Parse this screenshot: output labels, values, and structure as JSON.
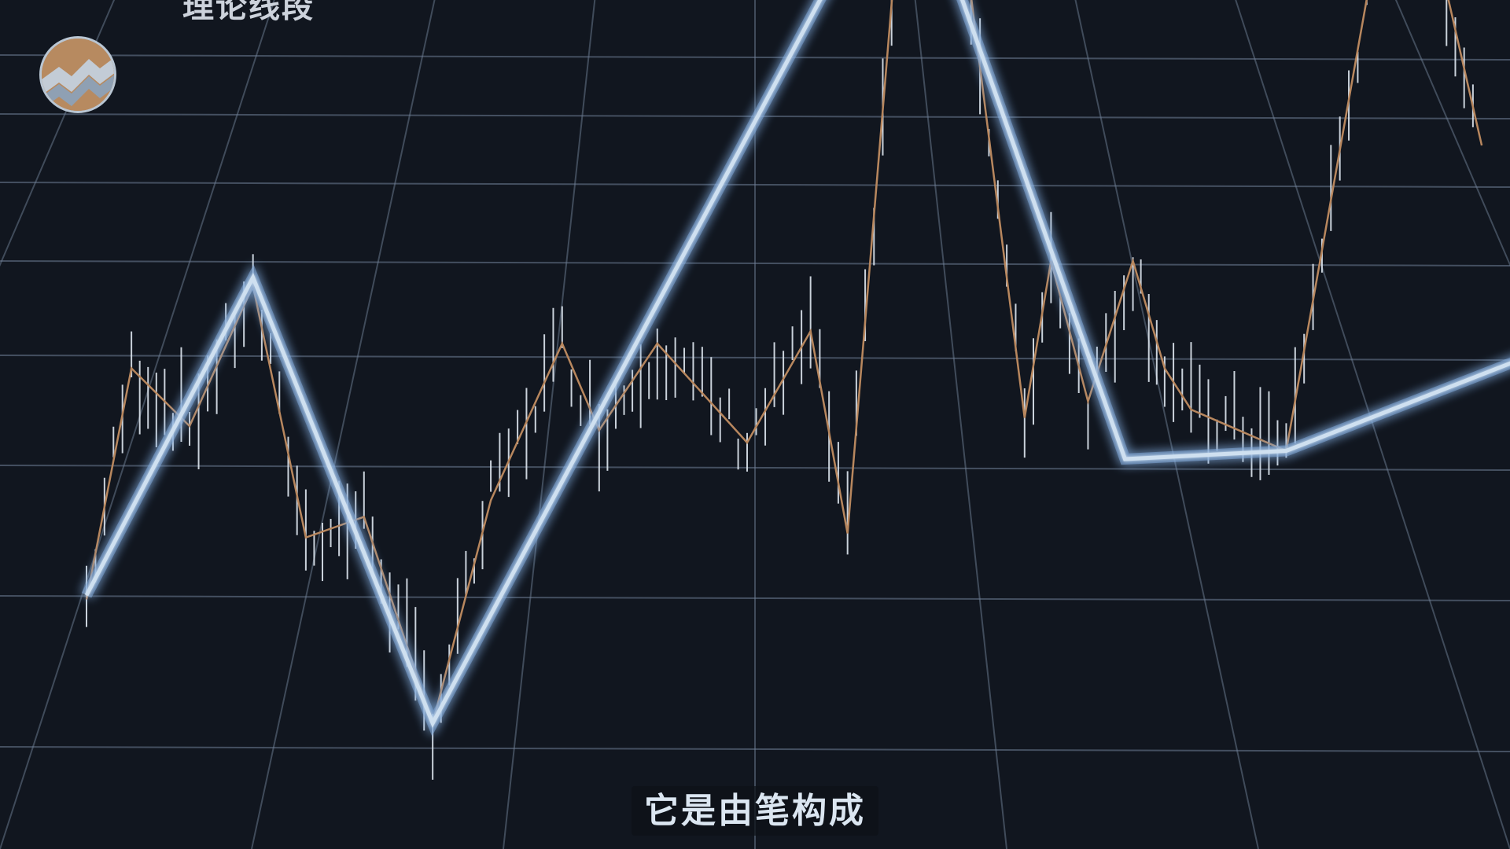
{
  "header": {
    "title": "理论线段"
  },
  "logo": {
    "icon": "zigzag-logo-icon"
  },
  "subtitle": "它是由笔构成",
  "colors": {
    "background": "#11161f",
    "grid": "#6f7f95",
    "segment": "#cfe0f0",
    "segment_glow": "#7fa8d8",
    "stroke": "#b8875e",
    "candle": "#dfe7ef"
  },
  "chart_data": {
    "type": "line",
    "title": "理论线段",
    "xlabel": "",
    "ylabel": "",
    "grid": true,
    "series": [
      {
        "role": "segment",
        "x": [
          0,
          6.3,
          13.1,
          31.0,
          39.3,
          45.4,
          55.0
        ],
        "y": [
          0.255,
          0.64,
          0.1,
          1.17,
          0.42,
          0.43,
          0.55
        ]
      },
      {
        "role": "stroke",
        "x": [
          0,
          1.7,
          3.9,
          6.3,
          8.3,
          10.5,
          13.1,
          15.3,
          18.0,
          19.4,
          21.6,
          25.0,
          27.4,
          28.8,
          30.8,
          32.8,
          35.5,
          36.5,
          37.9,
          39.6,
          40.8,
          41.8,
          45.4,
          49.8,
          52.8
        ],
        "y": [
          0.25,
          0.53,
          0.46,
          0.63,
          0.325,
          0.35,
          0.1,
          0.37,
          0.56,
          0.455,
          0.56,
          0.44,
          0.575,
          0.33,
          1.1,
          1.15,
          0.47,
          0.66,
          0.49,
          0.66,
          0.53,
          0.48,
          0.43,
          1.22,
          0.8
        ]
      }
    ],
    "candles_y_range": [
      0.15,
      1.15
    ]
  }
}
